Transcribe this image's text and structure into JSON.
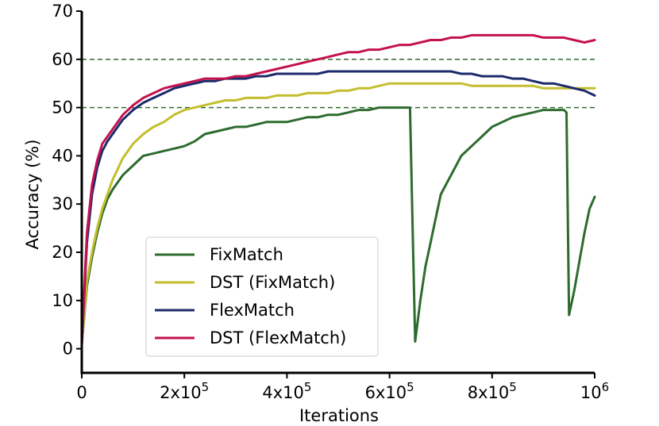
{
  "chart_data": {
    "type": "line",
    "title": "",
    "xlabel": "Iterations",
    "ylabel": "Accuracy (%)",
    "xlim": [
      0,
      1000000
    ],
    "ylim": [
      -5,
      70
    ],
    "x_ticks": [
      {
        "value": 0,
        "base": "0",
        "sup": ""
      },
      {
        "value": 200000,
        "base": "2x10",
        "sup": "5"
      },
      {
        "value": 400000,
        "base": "4x10",
        "sup": "5"
      },
      {
        "value": 600000,
        "base": "6x10",
        "sup": "5"
      },
      {
        "value": 800000,
        "base": "8x10",
        "sup": "5"
      },
      {
        "value": 1000000,
        "base": "10",
        "sup": "6"
      }
    ],
    "y_ticks": [
      0,
      10,
      20,
      30,
      40,
      50,
      60,
      70
    ],
    "reference_lines": [
      {
        "y": 50,
        "color": "#2e6b2e",
        "style": "dashed"
      },
      {
        "y": 60,
        "color": "#2e6b2e",
        "style": "dashed"
      }
    ],
    "grid": false,
    "legend_position": "lower-left",
    "series": [
      {
        "name": "FixMatch",
        "color": "#2e6b2e",
        "x": [
          0,
          10000,
          20000,
          30000,
          40000,
          50000,
          60000,
          80000,
          100000,
          120000,
          140000,
          160000,
          180000,
          200000,
          220000,
          240000,
          260000,
          280000,
          300000,
          320000,
          340000,
          360000,
          380000,
          400000,
          420000,
          440000,
          460000,
          480000,
          500000,
          520000,
          540000,
          560000,
          580000,
          600000,
          620000,
          640000,
          645000,
          650000,
          660000,
          670000,
          680000,
          690000,
          700000,
          720000,
          740000,
          760000,
          780000,
          800000,
          820000,
          840000,
          860000,
          880000,
          900000,
          920000,
          940000,
          945000,
          950000,
          960000,
          970000,
          980000,
          990000,
          1000000
        ],
        "y": [
          1,
          13,
          19,
          24,
          28,
          31,
          33,
          36,
          38,
          40,
          40.5,
          41,
          41.5,
          42,
          43,
          44.5,
          45,
          45.5,
          46,
          46,
          46.5,
          47,
          47,
          47,
          47.5,
          48,
          48,
          48.5,
          48.5,
          49,
          49.5,
          49.5,
          50,
          50,
          50,
          50,
          25,
          1.5,
          10,
          17,
          22,
          27,
          32,
          36,
          40,
          42,
          44,
          46,
          47,
          48,
          48.5,
          49,
          49.5,
          49.5,
          49.5,
          49,
          7,
          12,
          18,
          24,
          29,
          31.5
        ]
      },
      {
        "name": "DST (FixMatch)",
        "color": "#c3be2e",
        "x": [
          0,
          10000,
          20000,
          30000,
          40000,
          50000,
          60000,
          80000,
          100000,
          120000,
          140000,
          160000,
          180000,
          200000,
          220000,
          240000,
          260000,
          280000,
          300000,
          320000,
          340000,
          360000,
          380000,
          400000,
          420000,
          440000,
          460000,
          480000,
          500000,
          520000,
          540000,
          560000,
          580000,
          600000,
          620000,
          640000,
          660000,
          680000,
          700000,
          720000,
          740000,
          760000,
          780000,
          800000,
          820000,
          840000,
          860000,
          880000,
          900000,
          920000,
          940000,
          960000,
          980000,
          1000000
        ],
        "y": [
          1,
          14,
          20,
          25,
          29,
          32,
          35,
          39.5,
          42.5,
          44.5,
          46,
          47,
          48.5,
          49.5,
          50,
          50.5,
          51,
          51.5,
          51.5,
          52,
          52,
          52,
          52.5,
          52.5,
          52.5,
          53,
          53,
          53,
          53.5,
          53.5,
          54,
          54,
          54.5,
          55,
          55,
          55,
          55,
          55,
          55,
          55,
          55,
          54.5,
          54.5,
          54.5,
          54.5,
          54.5,
          54.5,
          54.5,
          54,
          54,
          54,
          54,
          54,
          54
        ]
      },
      {
        "name": "FlexMatch",
        "color": "#1b2a6b",
        "x": [
          0,
          10000,
          20000,
          30000,
          40000,
          50000,
          60000,
          80000,
          100000,
          120000,
          140000,
          160000,
          180000,
          200000,
          220000,
          240000,
          260000,
          280000,
          300000,
          320000,
          340000,
          360000,
          380000,
          400000,
          420000,
          440000,
          460000,
          480000,
          500000,
          520000,
          540000,
          560000,
          580000,
          600000,
          620000,
          640000,
          660000,
          680000,
          700000,
          720000,
          740000,
          760000,
          780000,
          800000,
          820000,
          840000,
          860000,
          880000,
          900000,
          920000,
          940000,
          960000,
          980000,
          1000000
        ],
        "y": [
          1,
          22,
          32,
          37.5,
          41,
          43,
          44.5,
          47.5,
          49.5,
          51,
          52,
          53,
          54,
          54.5,
          55,
          55.5,
          55.5,
          56,
          56,
          56,
          56.5,
          56.5,
          57,
          57,
          57,
          57,
          57,
          57.5,
          57.5,
          57.5,
          57.5,
          57.5,
          57.5,
          57.5,
          57.5,
          57.5,
          57.5,
          57.5,
          57.5,
          57.5,
          57,
          57,
          56.5,
          56.5,
          56.5,
          56,
          56,
          55.5,
          55,
          55,
          54.5,
          54,
          53.5,
          52.5
        ]
      },
      {
        "name": "DST (FlexMatch)",
        "color": "#c4124e",
        "x": [
          0,
          10000,
          20000,
          30000,
          40000,
          50000,
          60000,
          80000,
          100000,
          120000,
          140000,
          160000,
          180000,
          200000,
          220000,
          240000,
          260000,
          280000,
          300000,
          320000,
          340000,
          360000,
          380000,
          400000,
          420000,
          440000,
          460000,
          480000,
          500000,
          520000,
          540000,
          560000,
          580000,
          600000,
          620000,
          640000,
          660000,
          680000,
          700000,
          720000,
          740000,
          760000,
          780000,
          800000,
          820000,
          840000,
          860000,
          880000,
          900000,
          920000,
          940000,
          960000,
          980000,
          1000000
        ],
        "y": [
          1,
          24,
          34,
          39,
          42.5,
          44,
          45.5,
          48.5,
          50.5,
          52,
          53,
          54,
          54.5,
          55,
          55.5,
          56,
          56,
          56,
          56.5,
          56.5,
          57,
          57.5,
          58,
          58.5,
          59,
          59.5,
          60,
          60.5,
          61,
          61.5,
          61.5,
          62,
          62,
          62.5,
          63,
          63,
          63.5,
          64,
          64,
          64.5,
          64.5,
          65,
          65,
          65,
          65,
          65,
          65,
          65,
          64.5,
          64.5,
          64.5,
          64,
          63.5,
          64
        ]
      }
    ]
  }
}
